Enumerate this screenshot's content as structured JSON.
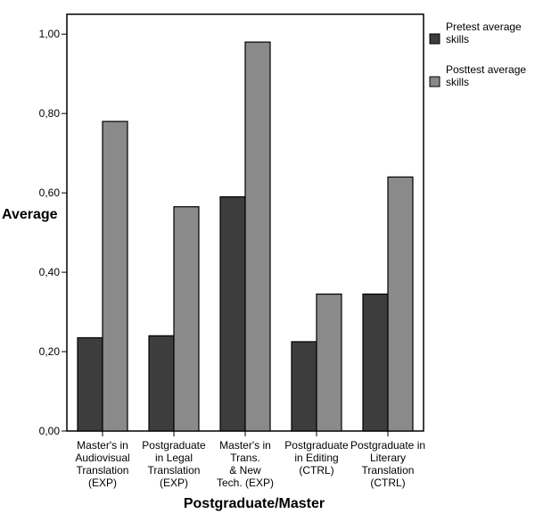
{
  "chart_data": {
    "type": "bar",
    "title": "",
    "xlabel": "Postgraduate/Master",
    "ylabel": "Average",
    "ylim": [
      0,
      1.05
    ],
    "yticks": [
      "0,00",
      "0,20",
      "0,40",
      "0,60",
      "0,80",
      "1,00"
    ],
    "ytick_values": [
      0,
      0.2,
      0.4,
      0.6,
      0.8,
      1.0
    ],
    "grid": false,
    "legend_position": "top-right",
    "categories": [
      [
        "Master's in",
        "Audiovisual",
        "Translation",
        "(EXP)"
      ],
      [
        "Postgraduate",
        "in Legal",
        "Translation",
        "(EXP)"
      ],
      [
        "Master's in",
        "Trans.",
        "& New",
        "Tech. (EXP)"
      ],
      [
        "Postgraduate",
        "in Editing",
        "(CTRL)"
      ],
      [
        "Postgraduate in",
        "Literary",
        "Translation",
        "(CTRL)"
      ]
    ],
    "series": [
      {
        "name": [
          "Pretest average",
          "skills"
        ],
        "color": "#3d3d3d",
        "values": [
          0.235,
          0.24,
          0.59,
          0.225,
          0.345
        ]
      },
      {
        "name": [
          "Posttest average",
          "skills"
        ],
        "color": "#8a8a8a",
        "values": [
          0.78,
          0.565,
          0.98,
          0.345,
          0.64
        ]
      }
    ]
  }
}
